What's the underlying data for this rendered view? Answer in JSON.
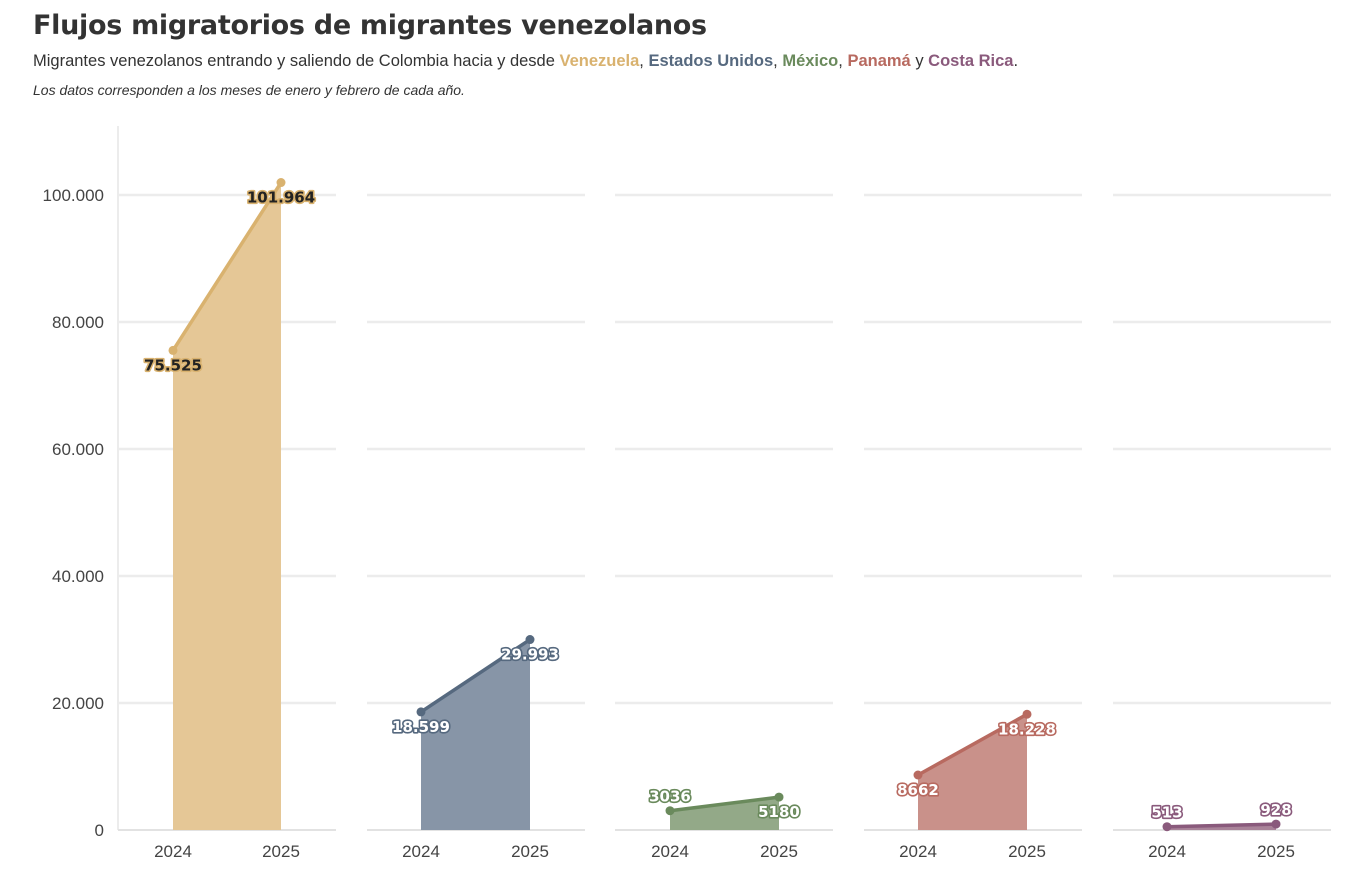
{
  "header": {
    "title": "Flujos migratorios de migrantes venezolanos",
    "subtitle_prefix": "Migrantes venezolanos entrando y saliendo de Colombia hacia y desde ",
    "sep_comma": ", ",
    "sep_and": " y ",
    "end_period": ".",
    "note": "Los datos corresponden a los meses de enero y febrero de cada año."
  },
  "chart_data": {
    "type": "area",
    "categories": [
      "2024",
      "2025"
    ],
    "ylim": [
      0,
      110000
    ],
    "y_ticks": [
      0,
      20000,
      40000,
      60000,
      80000,
      100000
    ],
    "y_tick_labels": [
      "0",
      "20.000",
      "40.000",
      "60.000",
      "80.000",
      "100.000"
    ],
    "grid": true,
    "series": [
      {
        "name": "Venezuela",
        "color": "#d9b26f",
        "fill": "#e5c796",
        "label_color": "#222222",
        "values": [
          75525,
          101964
        ],
        "labels": [
          "75.525",
          "101.964"
        ]
      },
      {
        "name": "Estados Unidos",
        "color": "#56697f",
        "fill": "#8795a7",
        "label_color": "#ffffff",
        "values": [
          18599,
          29993
        ],
        "labels": [
          "18.599",
          "29.993"
        ]
      },
      {
        "name": "México",
        "color": "#6a8a5c",
        "fill": "#93a988",
        "label_color": "#ffffff",
        "values": [
          3036,
          5180
        ],
        "labels": [
          "3036",
          "5180"
        ]
      },
      {
        "name": "Panamá",
        "color": "#b86a60",
        "fill": "#c9918a",
        "label_color": "#ffffff",
        "values": [
          8662,
          18228
        ],
        "labels": [
          "8662",
          "18.228"
        ]
      },
      {
        "name": "Costa Rica",
        "color": "#8a5a7c",
        "fill": "#a98399",
        "label_color": "#ffffff",
        "values": [
          513,
          928
        ],
        "labels": [
          "513",
          "928"
        ]
      }
    ]
  }
}
